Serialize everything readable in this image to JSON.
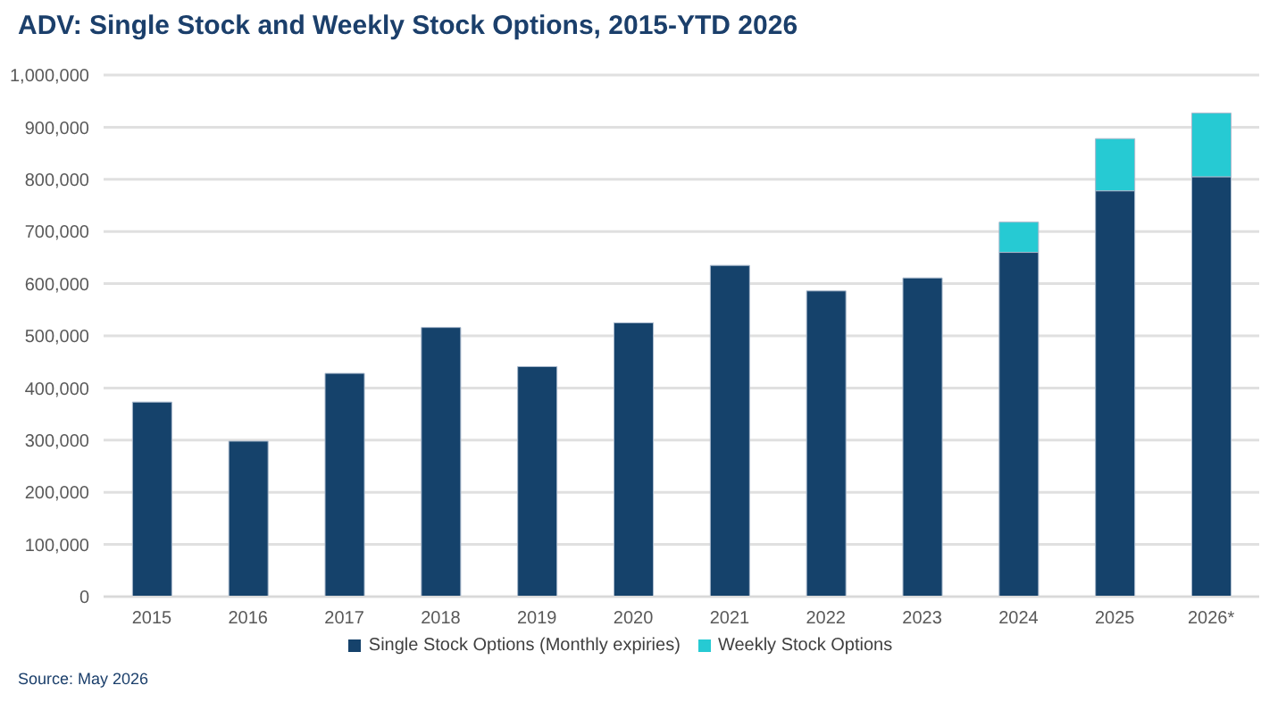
{
  "chart_data": {
    "type": "bar",
    "title": "ADV: Single Stock and Weekly Stock Options, 2015-YTD 2026",
    "categories": [
      "2015",
      "2016",
      "2017",
      "2018",
      "2019",
      "2020",
      "2021",
      "2022",
      "2023",
      "2024",
      "2025",
      "2026*"
    ],
    "series": [
      {
        "name": "Single Stock Options (Monthly expiries)",
        "color": "#15426b",
        "values": [
          373000,
          298000,
          428000,
          516000,
          441000,
          525000,
          635000,
          586000,
          611000,
          660000,
          778000,
          805000
        ]
      },
      {
        "name": "Weekly Stock Options",
        "color": "#26cad3",
        "values": [
          null,
          null,
          null,
          null,
          null,
          null,
          null,
          null,
          null,
          58000,
          100000,
          122000
        ]
      }
    ],
    "stacked": true,
    "ylim": [
      0,
      1000000
    ],
    "yticks": [
      0,
      {
        "value": 100000,
        "label": "100,000"
      },
      {
        "value": 200000,
        "label": "200,000"
      },
      {
        "value": 300000,
        "label": "300,000"
      },
      {
        "value": 400000,
        "label": "400,000"
      },
      {
        "value": 500000,
        "label": "500,000"
      },
      {
        "value": 600000,
        "label": "600,000"
      },
      {
        "value": 700000,
        "label": "700,000"
      },
      {
        "value": 800000,
        "label": "800,000"
      },
      {
        "value": 900000,
        "label": "900,000"
      },
      {
        "value": 1000000,
        "label": "1,000,000"
      }
    ],
    "grid": "y",
    "legend": "bottom",
    "annotations": [
      "Source: May 2026"
    ]
  }
}
